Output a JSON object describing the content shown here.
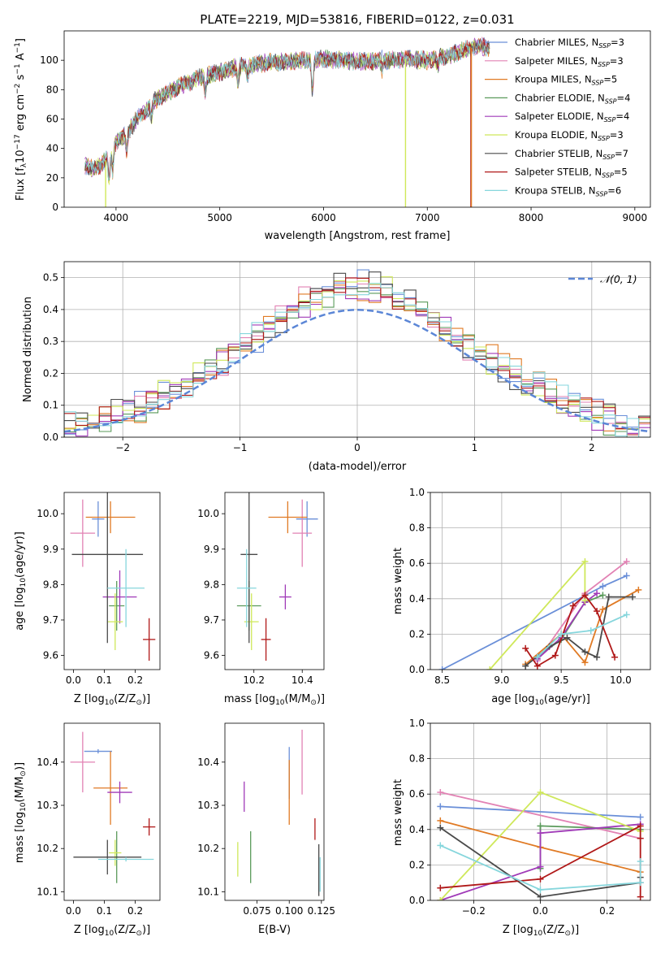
{
  "colors": {
    "Chabrier MILES": "#6a8fd8",
    "Salpeter MILES": "#e282b4",
    "Kroupa MILES": "#e07a24",
    "Chabrier ELODIE": "#5a9a5a",
    "Salpeter ELODIE": "#a03ab8",
    "Kroupa ELODIE": "#cfe85a",
    "Chabrier STELIB": "#4a4a4a",
    "Salpeter STELIB": "#b01818",
    "Kroupa STELIB": "#86d6dc",
    "normal_line": "#5b86d6",
    "grid": "#b0b0b0"
  },
  "chart_data": [
    {
      "id": "spectrum",
      "type": "line",
      "title": "PLATE=2219, MJD=53816, FIBERID=0122, z=0.031",
      "xlabel": "wavelength [Angstrom, rest frame]",
      "ylabel": "Flux [f$_\\lambda$10$^{-17}$ erg cm$^{-2}$ s$^{-1}$ A$^{-1}$]",
      "ylabel_main": "Flux [f",
      "ylabel_sub1": "λ",
      "ylabel_mid": "10",
      "ylabel_sup1": "−17",
      "ylabel_mid2": " erg cm",
      "ylabel_sup2": "−2",
      "ylabel_mid3": " s",
      "ylabel_sup3": "−1",
      "ylabel_mid4": " A",
      "ylabel_sup4": "−1",
      "ylabel_end": "]",
      "xlim": [
        3500,
        9150
      ],
      "ylim": [
        0,
        120
      ],
      "xticks": [
        "4000",
        "5000",
        "6000",
        "7000",
        "8000",
        "9000"
      ],
      "yticks": [
        "0",
        "20",
        "40",
        "60",
        "80",
        "100"
      ],
      "grid": false,
      "legend_position": "right",
      "legend": [
        {
          "label": "Chabrier MILES, N",
          "n": "3"
        },
        {
          "label": "Salpeter MILES, N",
          "n": "3"
        },
        {
          "label": "Kroupa MILES, N",
          "n": "5"
        },
        {
          "label": "Chabrier ELODIE, N",
          "n": "4"
        },
        {
          "label": "Salpeter ELODIE, N",
          "n": "4"
        },
        {
          "label": "Kroupa ELODIE, N",
          "n": "3"
        },
        {
          "label": "Chabrier STELIB, N",
          "n": "7"
        },
        {
          "label": "Salpeter STELIB, N",
          "n": "5"
        },
        {
          "label": "Kroupa STELIB, N",
          "n": "6"
        }
      ],
      "legend_sub": "SSP",
      "continuum_knots_x": [
        3700,
        3800,
        3900,
        4000,
        4100,
        4200,
        4400,
        4600,
        4800,
        5000,
        5200,
        5400,
        5600,
        5800,
        6000,
        6200,
        6400,
        6600,
        6800,
        7000,
        7200,
        7400,
        7500,
        7600,
        7800,
        8000,
        8200,
        8400,
        8600,
        8800,
        9000,
        9150
      ],
      "continuum_knots_y": [
        28,
        26,
        32,
        44,
        50,
        60,
        74,
        82,
        88,
        92,
        96,
        98,
        99,
        100,
        101,
        100,
        99,
        100,
        101,
        100,
        103,
        108,
        110,
        108,
        106,
        104,
        102,
        100,
        98,
        96,
        94,
        93
      ],
      "dips": [
        {
          "x": 3933,
          "depth": 18
        },
        {
          "x": 3968,
          "depth": 15
        },
        {
          "x": 4101,
          "depth": 12
        },
        {
          "x": 4340,
          "depth": 10
        },
        {
          "x": 4861,
          "depth": 10
        },
        {
          "x": 5175,
          "depth": 12
        },
        {
          "x": 5270,
          "depth": 8
        },
        {
          "x": 5893,
          "depth": 22
        },
        {
          "x": 6563,
          "depth": 6
        },
        {
          "x": 7100,
          "depth": 6
        }
      ],
      "data_stop_x": 7600,
      "emission_peak": {
        "x": 6563,
        "height": 16
      },
      "artifact_drops": [
        {
          "x": 3900,
          "color": "Kroupa ELODIE",
          "to": 0
        },
        {
          "x": 6790,
          "color": "Kroupa ELODIE",
          "to": 0
        },
        {
          "x": 7420,
          "color": "Salpeter STELIB",
          "to": 0
        },
        {
          "x": 7425,
          "color": "Kroupa MILES",
          "to": 0
        }
      ]
    },
    {
      "id": "residuals",
      "type": "line",
      "xlabel": "(data-model)/error",
      "ylabel": "Normed distribution",
      "xlim": [
        -2.5,
        2.5
      ],
      "ylim": [
        0,
        0.55
      ],
      "xticks": [
        "−2",
        "−1",
        "0",
        "1",
        "2"
      ],
      "yticks": [
        "0.0",
        "0.1",
        "0.2",
        "0.3",
        "0.4",
        "0.5"
      ],
      "grid": true,
      "legend_position": "top-right",
      "legend": [
        {
          "label": "𝒩(0, 1)"
        }
      ],
      "bin_width": 0.1
    },
    {
      "id": "age-vs-Z",
      "type": "scatter",
      "xlabel": "Z [log$_{10}$(Z/Z$_\\odot$)]",
      "xlabel_pre": "Z [log",
      "xlabel_sub": "10",
      "xlabel_post": "(Z/Z",
      "xlabel_odot": "⊙",
      "xlabel_end": ")]",
      "ylabel": "age  [log$_{10}$(age/yr)]",
      "ylabel_pre": "age  [log",
      "ylabel_sub": "10",
      "ylabel_post": "(age/yr)]",
      "xlim": [
        -0.03,
        0.28
      ],
      "ylim": [
        9.56,
        10.06
      ],
      "xticks": [
        "0.0",
        "0.1",
        "0.2"
      ],
      "yticks": [
        "9.6",
        "9.7",
        "9.8",
        "9.9",
        "10.0"
      ],
      "grid": false,
      "points": [
        {
          "model": "Chabrier MILES",
          "x": 0.08,
          "y": 9.985,
          "xerr": 0.02,
          "yerr": 0.05
        },
        {
          "model": "Salpeter MILES",
          "x": 0.03,
          "y": 9.945,
          "xerr": 0.04,
          "yerr": 0.095
        },
        {
          "model": "Kroupa MILES",
          "x": 0.12,
          "y": 9.99,
          "xerr": 0.08,
          "yerr": 0.045
        },
        {
          "model": "Chabrier ELODIE",
          "x": 0.14,
          "y": 9.74,
          "xerr": 0.025,
          "yerr": 0.07
        },
        {
          "model": "Salpeter ELODIE",
          "x": 0.15,
          "y": 9.765,
          "xerr": 0.055,
          "yerr": 0.075
        },
        {
          "model": "Kroupa ELODIE",
          "x": 0.135,
          "y": 9.695,
          "xerr": 0.025,
          "yerr": 0.08
        },
        {
          "model": "Chabrier STELIB",
          "x": 0.11,
          "y": 9.885,
          "xerr": 0.115,
          "yerr": 0.25
        },
        {
          "model": "Salpeter STELIB",
          "x": 0.245,
          "y": 9.645,
          "xerr": 0.02,
          "yerr": 0.06
        },
        {
          "model": "Kroupa STELIB",
          "x": 0.17,
          "y": 9.79,
          "xerr": 0.06,
          "yerr": 0.11
        }
      ]
    },
    {
      "id": "age-vs-mass",
      "type": "scatter",
      "xlabel": "mass [log$_{10}$(M/M$_\\odot$)]",
      "xlabel_pre": "mass [log",
      "xlabel_sub": "10",
      "xlabel_post": "(M/M",
      "xlabel_odot": "⊙",
      "xlabel_end": ")]",
      "xlim": [
        10.08,
        10.49
      ],
      "ylim": [
        9.56,
        10.06
      ],
      "xticks": [
        "10.2",
        "10.4"
      ],
      "yticks": [
        "9.6",
        "9.7",
        "9.8",
        "9.9",
        "10.0"
      ],
      "grid": false,
      "points": [
        {
          "model": "Chabrier MILES",
          "x": 10.42,
          "y": 9.985,
          "xerr": 0.045,
          "yerr": 0.05
        },
        {
          "model": "Salpeter MILES",
          "x": 10.4,
          "y": 9.945,
          "xerr": 0.04,
          "yerr": 0.095
        },
        {
          "model": "Kroupa MILES",
          "x": 10.34,
          "y": 9.99,
          "xerr": 0.08,
          "yerr": 0.045
        },
        {
          "model": "Chabrier ELODIE",
          "x": 10.18,
          "y": 9.74,
          "xerr": 0.05,
          "yerr": 0.07
        },
        {
          "model": "Salpeter ELODIE",
          "x": 10.33,
          "y": 9.765,
          "xerr": 0.025,
          "yerr": 0.035
        },
        {
          "model": "Kroupa ELODIE",
          "x": 10.19,
          "y": 9.695,
          "xerr": 0.03,
          "yerr": 0.08
        },
        {
          "model": "Chabrier STELIB",
          "x": 10.18,
          "y": 9.885,
          "xerr": 0.035,
          "yerr": 0.25
        },
        {
          "model": "Salpeter STELIB",
          "x": 10.25,
          "y": 9.645,
          "xerr": 0.02,
          "yerr": 0.06
        },
        {
          "model": "Kroupa STELIB",
          "x": 10.17,
          "y": 9.79,
          "xerr": 0.04,
          "yerr": 0.11
        }
      ]
    },
    {
      "id": "massweight-vs-age",
      "type": "line",
      "xlabel": "age  [log$_{10}$(age/yr)]",
      "xlabel_pre": "age  [log",
      "xlabel_sub": "10",
      "xlabel_post": "(age/yr)]",
      "ylabel": "mass weight",
      "xlim": [
        8.4,
        10.25
      ],
      "ylim": [
        0,
        1.0
      ],
      "xticks": [
        "8.5",
        "9.0",
        "9.5",
        "10.0"
      ],
      "yticks": [
        "0.0",
        "0.2",
        "0.4",
        "0.6",
        "0.8",
        "1.0"
      ],
      "grid": true,
      "series": [
        {
          "model": "Chabrier MILES",
          "x": [
            8.5,
            9.85,
            10.05
          ],
          "y": [
            0.0,
            0.47,
            0.53
          ]
        },
        {
          "model": "Salpeter MILES",
          "x": [
            9.3,
            9.7,
            10.05
          ],
          "y": [
            0.05,
            0.43,
            0.61
          ]
        },
        {
          "model": "Kroupa MILES",
          "x": [
            9.2,
            9.5,
            9.7,
            9.85,
            10.15
          ],
          "y": [
            0.03,
            0.2,
            0.04,
            0.34,
            0.45
          ]
        },
        {
          "model": "Chabrier ELODIE",
          "x": [
            9.3,
            9.5,
            9.7,
            9.85
          ],
          "y": [
            0.07,
            0.17,
            0.38,
            0.42
          ]
        },
        {
          "model": "Salpeter ELODIE",
          "x": [
            9.3,
            9.5,
            9.7,
            9.8
          ],
          "y": [
            0.06,
            0.18,
            0.38,
            0.43
          ]
        },
        {
          "model": "Kroupa ELODIE",
          "x": [
            8.9,
            9.7,
            9.7
          ],
          "y": [
            0.0,
            0.61,
            0.39
          ]
        },
        {
          "model": "Chabrier STELIB",
          "x": [
            9.2,
            9.4,
            9.55,
            9.7,
            9.8,
            9.9,
            10.1
          ],
          "y": [
            0.02,
            0.13,
            0.18,
            0.1,
            0.07,
            0.41,
            0.41
          ]
        },
        {
          "model": "Salpeter STELIB",
          "x": [
            9.2,
            9.3,
            9.45,
            9.6,
            9.7,
            9.8,
            9.95
          ],
          "y": [
            0.12,
            0.02,
            0.08,
            0.36,
            0.42,
            0.33,
            0.07
          ]
        },
        {
          "model": "Kroupa STELIB",
          "x": [
            9.3,
            9.5,
            9.75,
            10.05
          ],
          "y": [
            0.07,
            0.2,
            0.22,
            0.31
          ]
        }
      ]
    },
    {
      "id": "mass-vs-Z",
      "type": "scatter",
      "xlabel": "Z [log$_{10}$(Z/Z$_\\odot$)]",
      "xlabel_pre": "Z [log",
      "xlabel_sub": "10",
      "xlabel_post": "(Z/Z",
      "xlabel_odot": "⊙",
      "xlabel_end": ")]",
      "ylabel": "mass [log$_{10}$(M/M$_\\odot$)]",
      "ylabel_pre": "mass [log",
      "ylabel_sub": "10",
      "ylabel_post": "(M/M",
      "ylabel_odot": "⊙",
      "ylabel_end": ")]",
      "xlim": [
        -0.03,
        0.28
      ],
      "ylim": [
        10.08,
        10.49
      ],
      "xticks": [
        "0.0",
        "0.1",
        "0.2"
      ],
      "yticks": [
        "10.1",
        "10.2",
        "10.3",
        "10.4"
      ],
      "grid": false,
      "points": [
        {
          "model": "Chabrier MILES",
          "x": 0.08,
          "y": 10.425,
          "xerr": 0.045,
          "yerr": 0.005
        },
        {
          "model": "Salpeter MILES",
          "x": 0.03,
          "y": 10.4,
          "xerr": 0.04,
          "yerr": 0.07
        },
        {
          "model": "Kroupa MILES",
          "x": 0.12,
          "y": 10.34,
          "xerr": 0.055,
          "yerr": 0.085
        },
        {
          "model": "Chabrier ELODIE",
          "x": 0.14,
          "y": 10.18,
          "xerr": 0.005,
          "yerr": 0.06
        },
        {
          "model": "Salpeter ELODIE",
          "x": 0.15,
          "y": 10.33,
          "xerr": 0.04,
          "yerr": 0.025
        },
        {
          "model": "Kroupa ELODIE",
          "x": 0.135,
          "y": 10.19,
          "xerr": 0.02,
          "yerr": 0.03
        },
        {
          "model": "Chabrier STELIB",
          "x": 0.11,
          "y": 10.18,
          "xerr": 0.11,
          "yerr": 0.04
        },
        {
          "model": "Salpeter STELIB",
          "x": 0.245,
          "y": 10.25,
          "xerr": 0.02,
          "yerr": 0.02
        },
        {
          "model": "Kroupa STELIB",
          "x": 0.17,
          "y": 10.175,
          "xerr": 0.09,
          "yerr": 0.005
        }
      ]
    },
    {
      "id": "mass-vs-EBV",
      "type": "scatter",
      "xlabel": "E(B-V)",
      "xlim": [
        0.05,
        0.127
      ],
      "ylim": [
        10.08,
        10.49
      ],
      "xticks": [
        "0.075",
        "0.100",
        "0.125"
      ],
      "yticks": [
        "10.1",
        "10.2",
        "10.3",
        "10.4"
      ],
      "grid": false,
      "points": [
        {
          "model": "Chabrier MILES",
          "x": 0.1,
          "y": 10.375,
          "xerr": 0,
          "yerr": 0.06
        },
        {
          "model": "Salpeter MILES",
          "x": 0.11,
          "y": 10.4,
          "xerr": 0,
          "yerr": 0.075
        },
        {
          "model": "Kroupa MILES",
          "x": 0.1,
          "y": 10.33,
          "xerr": 0,
          "yerr": 0.075
        },
        {
          "model": "Chabrier ELODIE",
          "x": 0.07,
          "y": 10.18,
          "xerr": 0,
          "yerr": 0.06
        },
        {
          "model": "Salpeter ELODIE",
          "x": 0.065,
          "y": 10.32,
          "xerr": 0,
          "yerr": 0.035
        },
        {
          "model": "Kroupa ELODIE",
          "x": 0.06,
          "y": 10.175,
          "xerr": 0,
          "yerr": 0.04
        },
        {
          "model": "Chabrier STELIB",
          "x": 0.123,
          "y": 10.15,
          "xerr": 0,
          "yerr": 0.06
        },
        {
          "model": "Salpeter STELIB",
          "x": 0.12,
          "y": 10.245,
          "xerr": 0,
          "yerr": 0.025
        },
        {
          "model": "Kroupa STELIB",
          "x": 0.124,
          "y": 10.14,
          "xerr": 0,
          "yerr": 0.04
        }
      ]
    },
    {
      "id": "massweight-vs-Z",
      "type": "line",
      "xlabel": "Z [log$_{10}$(Z/Z$_\\odot$)]",
      "xlabel_pre": "Z [log",
      "xlabel_sub": "10",
      "xlabel_post": "(Z/Z",
      "xlabel_odot": "⊙",
      "xlabel_end": ")]",
      "ylabel": "mass weight",
      "xlim": [
        -0.33,
        0.33
      ],
      "ylim": [
        0,
        1.0
      ],
      "xticks": [
        "−0.2",
        "0.0",
        "0.2"
      ],
      "yticks": [
        "0.0",
        "0.2",
        "0.4",
        "0.6",
        "0.8",
        "1.0"
      ],
      "grid": true,
      "series": [
        {
          "model": "Chabrier MILES",
          "x": [
            -0.3,
            0.3
          ],
          "y": [
            0.53,
            0.47
          ]
        },
        {
          "model": "Salpeter MILES",
          "x": [
            -0.3,
            0.3
          ],
          "y": [
            0.61,
            0.35
          ]
        },
        {
          "model": "Kroupa MILES",
          "x": [
            -0.3,
            0.0,
            0.3
          ],
          "y": [
            0.45,
            0.3,
            0.16
          ]
        },
        {
          "model": "Chabrier ELODIE",
          "x": [
            0.0,
            0.0,
            0.3
          ],
          "y": [
            0.18,
            0.42,
            0.4
          ]
        },
        {
          "model": "Salpeter ELODIE",
          "x": [
            -0.3,
            0.0,
            0.0,
            0.3
          ],
          "y": [
            0.0,
            0.19,
            0.38,
            0.43
          ]
        },
        {
          "model": "Kroupa ELODIE",
          "x": [
            -0.3,
            0.0,
            0.3
          ],
          "y": [
            0.0,
            0.61,
            0.39
          ]
        },
        {
          "model": "Chabrier STELIB",
          "x": [
            -0.3,
            0.0,
            0.3,
            0.3
          ],
          "y": [
            0.41,
            0.02,
            0.1,
            0.13
          ]
        },
        {
          "model": "Salpeter STELIB",
          "x": [
            -0.3,
            0.0,
            0.3,
            0.3,
            0.3
          ],
          "y": [
            0.07,
            0.12,
            0.42,
            0.35,
            0.02
          ]
        },
        {
          "model": "Kroupa STELIB",
          "x": [
            -0.3,
            0.0,
            0.3,
            0.3
          ],
          "y": [
            0.31,
            0.06,
            0.1,
            0.22
          ]
        }
      ]
    }
  ]
}
